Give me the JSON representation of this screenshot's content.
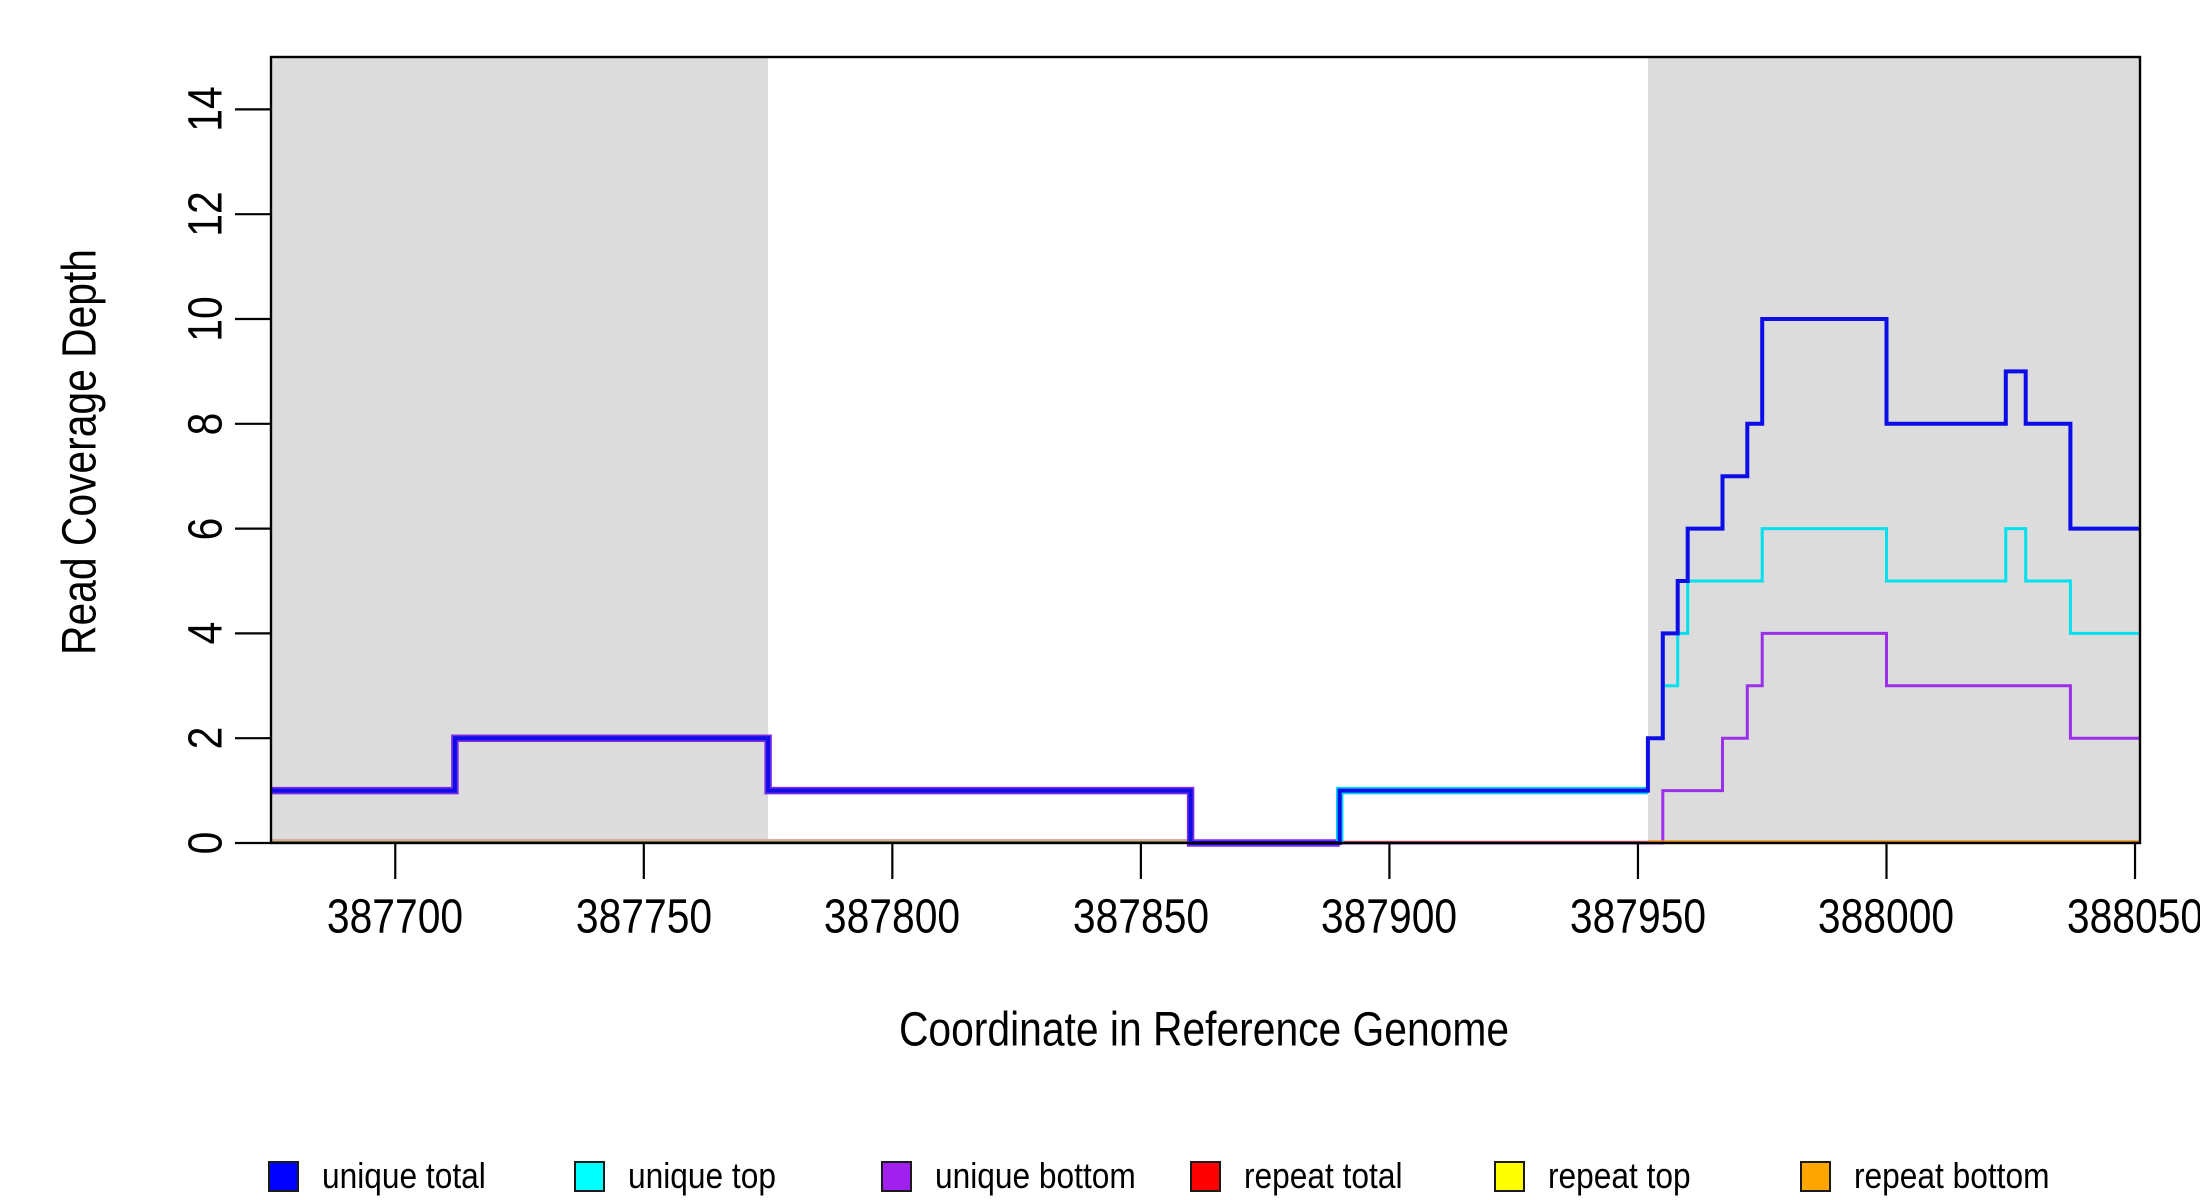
{
  "figure": {
    "background": "#ffffff",
    "plot_background": "#ffffff",
    "shaded_region_color": "#dcdcdc"
  },
  "chart_data": {
    "type": "line",
    "subtype": "step-coverage",
    "title": "",
    "xlabel": "Coordinate in Reference Genome",
    "ylabel": "Read Coverage Depth",
    "xlim": [
      387675,
      388051
    ],
    "ylim": [
      0,
      15
    ],
    "grid": false,
    "x_ticks": [
      387700,
      387750,
      387800,
      387850,
      387900,
      387950,
      388000,
      388050
    ],
    "y_ticks": [
      0,
      2,
      4,
      6,
      8,
      10,
      12,
      14
    ],
    "shaded_regions": [
      {
        "from": 387675,
        "to": 387775,
        "color": "#dcdcdc"
      },
      {
        "from": 387952,
        "to": 388051,
        "color": "#dcdcdc"
      }
    ],
    "series": [
      {
        "name": "unique total",
        "color": "#0d0de8",
        "segments": [
          [
            1,
            387675,
            387712
          ],
          [
            2,
            387712,
            387775
          ],
          [
            1,
            387775,
            387860
          ],
          [
            0,
            387860,
            387890
          ],
          [
            1,
            387890,
            387952
          ],
          [
            2,
            387952,
            387955
          ],
          [
            4,
            387955,
            387958
          ],
          [
            5,
            387958,
            387960
          ],
          [
            6,
            387960,
            387967
          ],
          [
            7,
            387967,
            387972
          ],
          [
            8,
            387972,
            387975
          ],
          [
            10,
            387975,
            388000
          ],
          [
            8,
            388000,
            388024
          ],
          [
            9,
            388024,
            388028
          ],
          [
            8,
            388028,
            388037
          ],
          [
            6,
            388037,
            388051
          ]
        ]
      },
      {
        "name": "unique top",
        "color": "#00e0ee",
        "segments": [
          [
            0,
            387675,
            387890
          ],
          [
            1,
            387890,
            387952
          ],
          [
            2,
            387952,
            387955
          ],
          [
            3,
            387955,
            387958
          ],
          [
            4,
            387958,
            387960
          ],
          [
            5,
            387960,
            387975
          ],
          [
            6,
            387975,
            388000
          ],
          [
            5,
            388000,
            388024
          ],
          [
            6,
            388024,
            388028
          ],
          [
            5,
            388028,
            388037
          ],
          [
            4,
            388037,
            388051
          ]
        ]
      },
      {
        "name": "unique bottom",
        "color": "#9b30e8",
        "segments": [
          [
            1,
            387675,
            387712
          ],
          [
            2,
            387712,
            387775
          ],
          [
            1,
            387775,
            387860
          ],
          [
            0,
            387860,
            387955
          ],
          [
            1,
            387955,
            387967
          ],
          [
            2,
            387967,
            387972
          ],
          [
            3,
            387972,
            387975
          ],
          [
            4,
            387975,
            388000
          ],
          [
            3,
            388000,
            388037
          ],
          [
            2,
            388037,
            388051
          ]
        ]
      },
      {
        "name": "repeat total",
        "color": "#ee0000",
        "segments": [
          [
            0,
            387675,
            388051
          ]
        ]
      },
      {
        "name": "repeat top",
        "color": "#ffff00",
        "segments": [
          [
            0,
            387675,
            388051
          ]
        ]
      },
      {
        "name": "repeat bottom",
        "color": "#ff8c00",
        "segments": [
          [
            0,
            387675,
            388051
          ]
        ]
      }
    ],
    "baseline_zero_segments": [
      {
        "from": 387675,
        "to": 387860,
        "color": "#d9aaa0",
        "dy": -3,
        "width": 2
      },
      {
        "from": 387675,
        "to": 387860,
        "color": "#7d8b3f",
        "dy": -0.5,
        "width": 3
      },
      {
        "from": 387890,
        "to": 387952,
        "color": "#c4566b",
        "dy": -1,
        "width": 2.6
      },
      {
        "from": 387952,
        "to": 388051,
        "color": "#e8820c",
        "dy": -1,
        "width": 3.2
      }
    ],
    "legend": {
      "position": "bottom",
      "entries": [
        {
          "label": "unique total",
          "color": "#0000ff"
        },
        {
          "label": "unique top",
          "color": "#00ffff"
        },
        {
          "label": "unique bottom",
          "color": "#a020f0"
        },
        {
          "label": "repeat total",
          "color": "#ff0000"
        },
        {
          "label": "repeat top",
          "color": "#ffff00"
        },
        {
          "label": "repeat bottom",
          "color": "#ffa500"
        }
      ]
    }
  }
}
